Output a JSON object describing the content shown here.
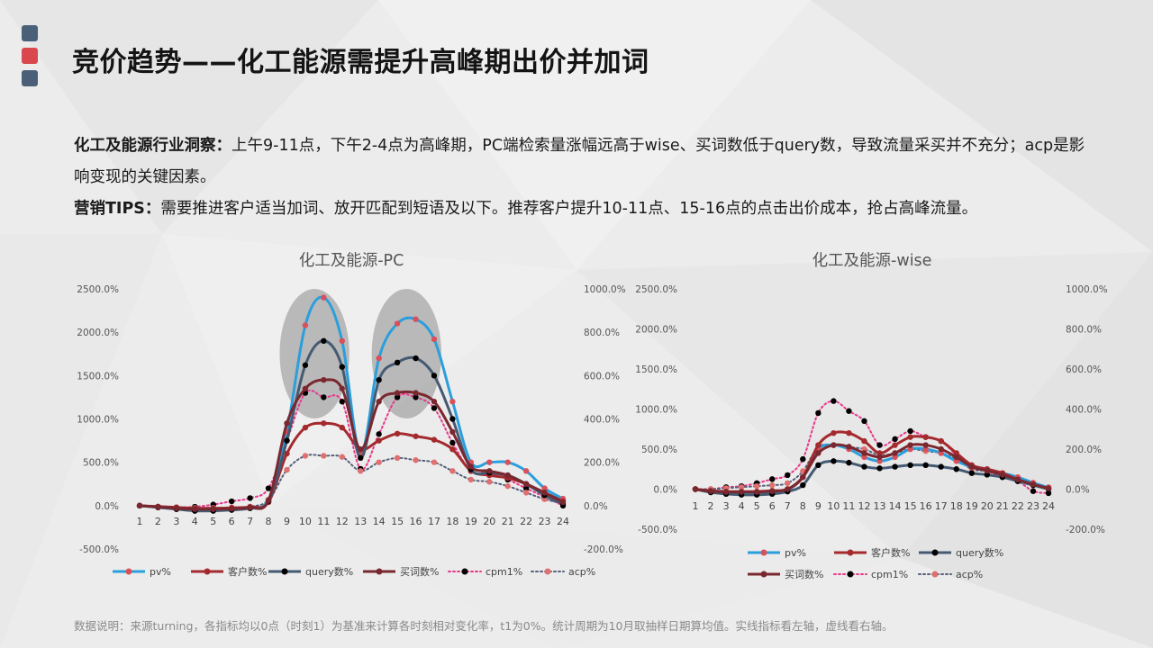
{
  "header": {
    "title": "竞价趋势——化工能源需提升高峰期出价并加词",
    "deco_colors": [
      "#4a6078",
      "#d9484c",
      "#4a6078"
    ]
  },
  "insight": {
    "label1": "化工及能源行业洞察：",
    "text1": "上午9-11点，下午2-4点为高峰期，PC端检索量涨幅远高于wise、买词数低于query数，导致流量采买并不充分；acp是影响变现的关键因素。",
    "label2": "营销TIPS：",
    "text2": "需要推进客户适当加词、放开匹配到短语及以下。推荐客户提升10-11点、15-16点的点击出价成本，抢占高峰流量。"
  },
  "footnote": "数据说明：来源turning，各指标均以0点（时刻1）为基准来计算各时刻相对变化率，t1为0%。统计周期为10月取抽样日期算均值。实线指标看左轴，虚线看右轴。",
  "chart_data": [
    {
      "type": "line",
      "title": "化工及能源-PC",
      "x": [
        "1",
        "2",
        "3",
        "4",
        "5",
        "6",
        "7",
        "8",
        "9",
        "10",
        "11",
        "12",
        "13",
        "14",
        "15",
        "16",
        "17",
        "18",
        "19",
        "20",
        "21",
        "22",
        "23",
        "24"
      ],
      "y_left": {
        "lim": [
          -500,
          2500
        ],
        "ticks": [
          "-500.0%",
          "0.0%",
          "500.0%",
          "1000.0%",
          "1500.0%",
          "2000.0%",
          "2500.0%"
        ]
      },
      "y_right": {
        "lim": [
          -200,
          1000
        ],
        "ticks": [
          "-200.0%",
          "0.0%",
          "200.0%",
          "400.0%",
          "600.0%",
          "800.0%",
          "1000.0%"
        ]
      },
      "highlights": [
        {
          "x_from": 9,
          "x_to": 12
        },
        {
          "x_from": 14,
          "x_to": 17
        }
      ],
      "series": [
        {
          "name": "pv%",
          "axis": "left",
          "style": "solid",
          "color": "#2a9fdc",
          "marker": "#d9505a",
          "values": [
            0,
            -20,
            -40,
            -50,
            -50,
            -40,
            -20,
            70,
            850,
            2080,
            2400,
            1900,
            600,
            1700,
            2100,
            2150,
            1920,
            1200,
            500,
            500,
            500,
            400,
            200,
            80
          ]
        },
        {
          "name": "客户数%",
          "axis": "left",
          "style": "solid",
          "color": "#a52a2e",
          "marker": "#a52a2e",
          "values": [
            0,
            -10,
            -20,
            -30,
            -30,
            -25,
            -15,
            40,
            600,
            900,
            950,
            900,
            650,
            750,
            830,
            800,
            760,
            650,
            400,
            350,
            320,
            250,
            150,
            50
          ]
        },
        {
          "name": "query数%",
          "axis": "left",
          "style": "solid",
          "color": "#455a72",
          "marker": "#000000",
          "values": [
            0,
            -20,
            -40,
            -60,
            -60,
            -50,
            -30,
            50,
            750,
            1620,
            1900,
            1600,
            550,
            1450,
            1650,
            1700,
            1500,
            1000,
            420,
            380,
            350,
            250,
            120,
            20
          ]
        },
        {
          "name": "买词数%",
          "axis": "left",
          "style": "solid",
          "color": "#7a2830",
          "marker": "#7a2830",
          "values": [
            0,
            -15,
            -30,
            -40,
            -40,
            -35,
            -20,
            60,
            950,
            1350,
            1450,
            1350,
            650,
            1200,
            1300,
            1300,
            1200,
            850,
            450,
            400,
            350,
            250,
            150,
            40
          ]
        },
        {
          "name": "cpm1%",
          "axis": "right",
          "style": "dotted",
          "color": "#e8388a",
          "marker": "#000000",
          "values": [
            0,
            -5,
            -8,
            -5,
            5,
            20,
            35,
            80,
            300,
            520,
            500,
            480,
            170,
            330,
            500,
            500,
            450,
            290,
            160,
            150,
            120,
            80,
            40,
            0
          ]
        },
        {
          "name": "acp%",
          "axis": "right",
          "style": "dotted",
          "color": "#55607a",
          "marker": "#e07070",
          "values": [
            0,
            -5,
            -8,
            -10,
            -10,
            -8,
            -4,
            25,
            165,
            230,
            230,
            225,
            160,
            200,
            220,
            210,
            200,
            160,
            120,
            110,
            90,
            60,
            30,
            10
          ]
        }
      ]
    },
    {
      "type": "line",
      "title": "化工及能源-wise",
      "x": [
        "1",
        "2",
        "3",
        "4",
        "5",
        "6",
        "7",
        "8",
        "9",
        "10",
        "11",
        "12",
        "13",
        "14",
        "15",
        "16",
        "17",
        "18",
        "19",
        "20",
        "21",
        "22",
        "23",
        "24"
      ],
      "y_left": {
        "lim": [
          -500,
          2500
        ],
        "ticks": [
          "-500.0%",
          "0.0%",
          "500.0%",
          "1000.0%",
          "1500.0%",
          "2000.0%",
          "2500.0%"
        ]
      },
      "y_right": {
        "lim": [
          -200,
          1000
        ],
        "ticks": [
          "-200.0%",
          "0.0%",
          "200.0%",
          "400.0%",
          "600.0%",
          "800.0%",
          "1000.0%"
        ]
      },
      "series": [
        {
          "name": "pv%",
          "axis": "left",
          "style": "solid",
          "color": "#2a9fdc",
          "marker": "#d9505a",
          "values": [
            0,
            -30,
            -40,
            -40,
            -40,
            -30,
            -10,
            150,
            500,
            550,
            500,
            400,
            350,
            400,
            500,
            500,
            450,
            350,
            280,
            250,
            200,
            150,
            80,
            20
          ]
        },
        {
          "name": "客户数%",
          "axis": "left",
          "style": "solid",
          "color": "#a52a2e",
          "marker": "#a52a2e",
          "values": [
            0,
            -20,
            -30,
            -30,
            -30,
            -20,
            0,
            150,
            550,
            700,
            700,
            600,
            450,
            550,
            650,
            650,
            600,
            450,
            300,
            250,
            200,
            120,
            60,
            10
          ]
        },
        {
          "name": "query数%",
          "axis": "left",
          "style": "solid",
          "color": "#455a72",
          "marker": "#000000",
          "values": [
            0,
            -40,
            -60,
            -70,
            -70,
            -60,
            -30,
            50,
            300,
            350,
            330,
            280,
            260,
            280,
            300,
            300,
            280,
            250,
            200,
            180,
            150,
            100,
            50,
            0
          ]
        },
        {
          "name": "买词数%",
          "axis": "left",
          "style": "solid",
          "color": "#7a2830",
          "marker": "#7a2830",
          "values": [
            0,
            -25,
            -35,
            -35,
            -35,
            -25,
            0,
            150,
            450,
            550,
            530,
            450,
            400,
            450,
            550,
            550,
            500,
            400,
            280,
            230,
            180,
            120,
            60,
            10
          ]
        },
        {
          "name": "cpm1%",
          "axis": "right",
          "style": "dotted",
          "color": "#e8388a",
          "marker": "#000000",
          "values": [
            0,
            0,
            10,
            15,
            30,
            50,
            70,
            150,
            380,
            440,
            390,
            340,
            220,
            250,
            290,
            260,
            240,
            170,
            110,
            90,
            60,
            40,
            -10,
            -20
          ]
        },
        {
          "name": "acp%",
          "axis": "right",
          "style": "dotted",
          "color": "#55607a",
          "marker": "#e07070",
          "values": [
            0,
            0,
            5,
            10,
            15,
            20,
            30,
            90,
            210,
            220,
            210,
            200,
            170,
            180,
            200,
            190,
            180,
            150,
            100,
            90,
            70,
            50,
            20,
            10
          ]
        }
      ]
    }
  ]
}
